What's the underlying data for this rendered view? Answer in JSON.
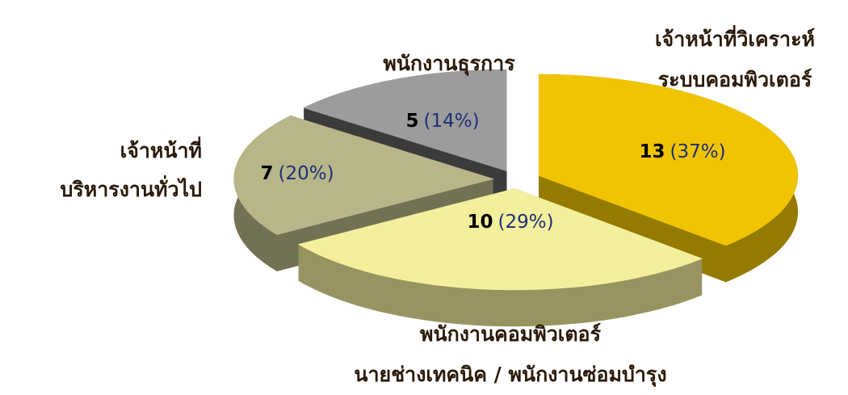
{
  "chart_data": {
    "type": "pie3d",
    "categories": [
      [
        "เจ้าหน้าที่วิเคราะห์",
        "ระบบคอมพิวเตอร์"
      ],
      [
        "พนักงานคอมพิวเตอร์",
        "นายช่างเทคนิค / พนักงานซ่อมบำรุง"
      ],
      [
        "เจ้าหน้าที่",
        "บริหารงานทั่วไป"
      ],
      [
        "พนักงานธุรการ"
      ]
    ],
    "values": [
      13,
      10,
      7,
      5
    ],
    "percent_labels": [
      "(37%)",
      "(29%)",
      "(20%)",
      "(14%)"
    ],
    "colors": [
      "#f0c400",
      "#f3ef9c",
      "#b8b688",
      "#9c9c9c"
    ]
  }
}
